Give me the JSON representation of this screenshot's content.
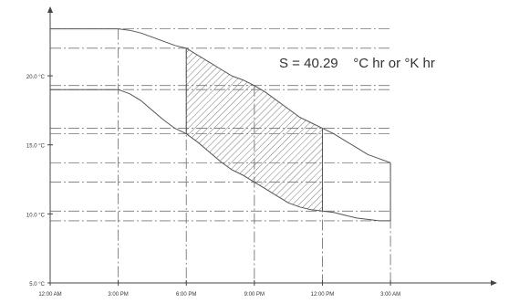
{
  "chart_data": {
    "type": "line",
    "annotation": "S = 40.29    °C hr or °K hr",
    "y_tick_labels": [
      "20.0 °C",
      "15.0 °C",
      "10.0 °C",
      "5.0 °C"
    ],
    "y_tick_values": [
      20,
      15,
      10,
      5
    ],
    "x_tick_labels": [
      "12:00 AM",
      "3:00 PM",
      "6:00 PM",
      "9:00 PM",
      "12:00 PM",
      "3:00 AM"
    ],
    "x_tick_values": [
      0,
      3,
      6,
      9,
      12,
      15
    ],
    "xlim": [
      0,
      19.5
    ],
    "ylim": [
      5,
      24.5
    ],
    "grid": false,
    "series": [
      {
        "x": [
          0,
          3,
          3.5,
          4,
          4.5,
          5,
          5.5,
          6,
          6.5,
          7,
          7.5,
          8,
          8.5,
          9,
          9.5,
          10,
          10.5,
          11,
          11.5,
          12,
          12.5,
          13,
          13.5,
          14,
          14.5,
          15
        ],
        "values": [
          23.4,
          23.4,
          23.3,
          23.1,
          22.8,
          22.5,
          22.2,
          22.0,
          21.5,
          21.0,
          20.5,
          20.0,
          19.7,
          19.3,
          18.8,
          18.2,
          17.6,
          17.0,
          16.6,
          16.2,
          15.8,
          15.3,
          14.8,
          14.3,
          14.0,
          13.7
        ]
      },
      {
        "x": [
          0,
          3,
          3.5,
          4,
          4.5,
          5,
          5.5,
          6,
          6.5,
          7,
          7.5,
          8,
          8.5,
          9,
          9.5,
          10,
          10.5,
          11,
          11.5,
          12,
          12.5,
          13,
          13.5,
          14,
          14.5,
          15
        ],
        "values": [
          19.0,
          19.0,
          18.7,
          18.2,
          17.5,
          16.8,
          16.2,
          15.8,
          15.2,
          14.5,
          13.8,
          13.2,
          12.8,
          12.3,
          11.8,
          11.3,
          10.8,
          10.5,
          10.3,
          10.2,
          10.1,
          9.9,
          9.7,
          9.6,
          9.5,
          9.5
        ]
      }
    ],
    "shaded_region_x": [
      6,
      12
    ],
    "reference_y_values": [
      23.4,
      22.0,
      19.3,
      19.0,
      16.2,
      15.8,
      13.7,
      12.3,
      10.2,
      9.5
    ],
    "line_color": "#555555",
    "dash_color": "#777777",
    "axis_color": "#444444"
  }
}
